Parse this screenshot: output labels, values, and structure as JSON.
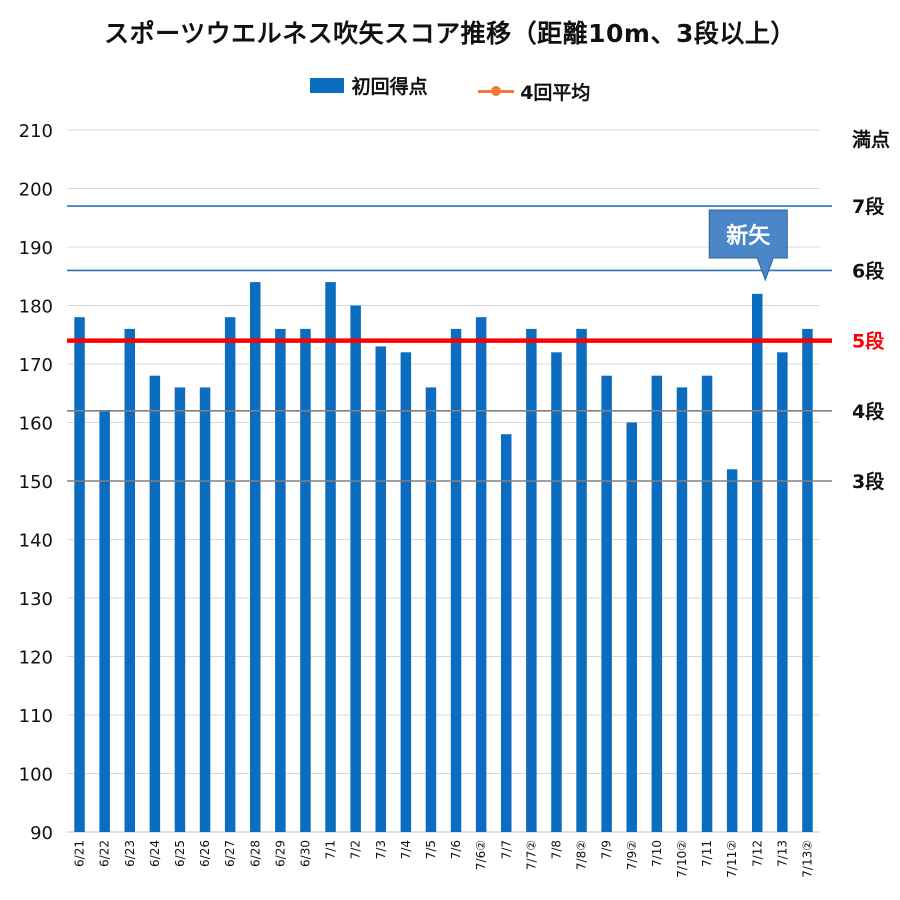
{
  "chart_data": {
    "type": "bar",
    "title": "スポーツウエルネス吹矢スコア推移（距離10m、3段以上）",
    "legend": [
      "初回得点",
      "4回平均"
    ],
    "categories": [
      "6/21",
      "6/22",
      "6/23",
      "6/24",
      "6/25",
      "6/26",
      "6/27",
      "6/28",
      "6/29",
      "6/30",
      "7/1",
      "7/2",
      "7/3",
      "7/4",
      "7/5",
      "7/6",
      "7/6②",
      "7/7",
      "7/7②",
      "7/8",
      "7/8②",
      "7/9",
      "7/9②",
      "7/10",
      "7/10②",
      "7/11",
      "7/11②",
      "7/12",
      "7/13",
      "7/13②"
    ],
    "series": [
      {
        "name": "初回得点",
        "color": "#0c6cc0",
        "values": [
          178,
          162,
          176,
          168,
          166,
          166,
          178,
          184,
          176,
          176,
          184,
          180,
          173,
          172,
          166,
          176,
          178,
          158,
          176,
          172,
          176,
          168,
          160,
          168,
          166,
          168,
          152,
          182,
          172,
          176
        ]
      }
    ],
    "ylim": [
      90,
      210
    ],
    "yticks": [
      90,
      100,
      110,
      120,
      130,
      140,
      150,
      160,
      170,
      180,
      190,
      200,
      210
    ],
    "grid": true,
    "legend_position": "top",
    "reference_lines": [
      {
        "label": "満点",
        "value": 210,
        "color": "#d9d9d9"
      },
      {
        "label": "7段",
        "value": 197,
        "color": "#2e75b6"
      },
      {
        "label": "6段",
        "value": 186,
        "color": "#2e75b6"
      },
      {
        "label": "5段",
        "value": 174,
        "color": "#ff0000"
      },
      {
        "label": "4段",
        "value": 162,
        "color": "#808080"
      },
      {
        "label": "3段",
        "value": 150,
        "color": "#808080"
      }
    ],
    "annotations": [
      {
        "text": "新矢",
        "category": "7/12"
      }
    ]
  }
}
